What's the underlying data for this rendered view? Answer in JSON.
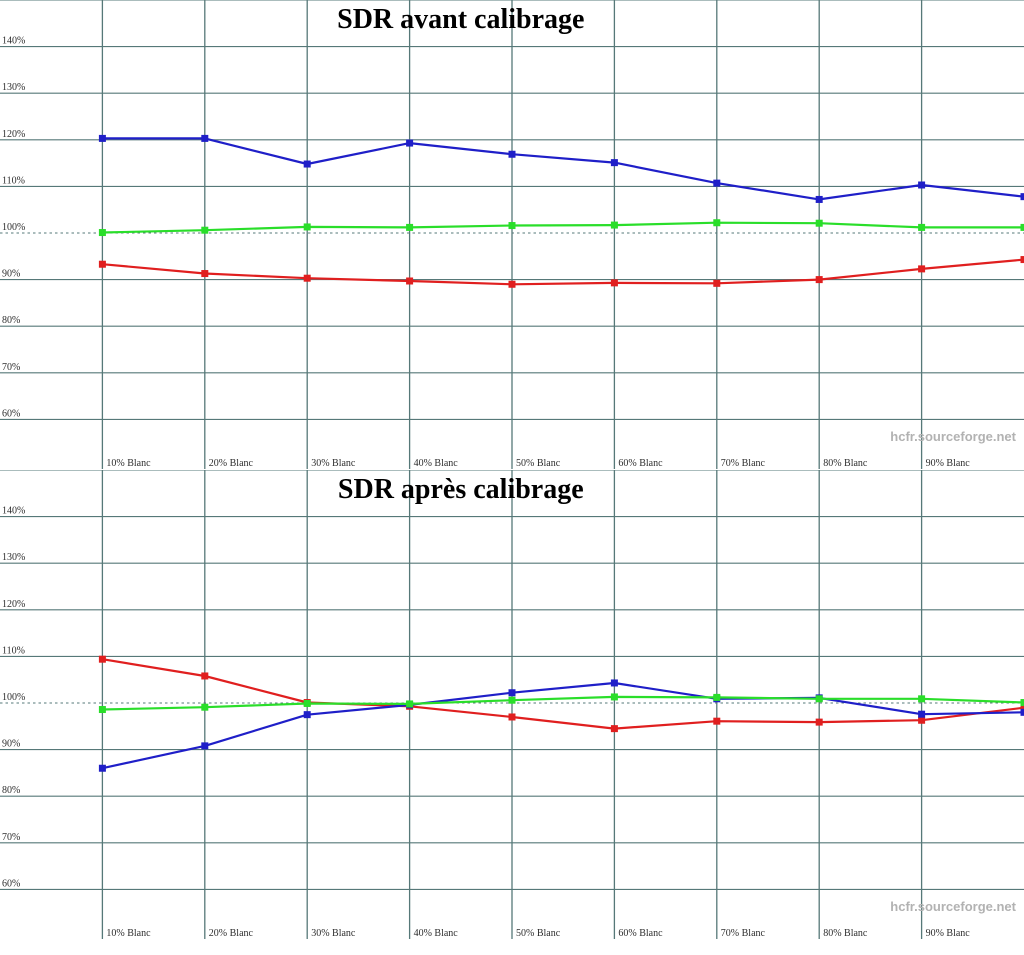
{
  "page": {
    "background": "#ffffff",
    "grid_color": "#567878",
    "tick_label_color": "#2e2e2e",
    "watermark_color": "#b2b2b2"
  },
  "chart_data": [
    {
      "type": "line",
      "title": "SDR avant calibrage",
      "watermark": "hcfr.sourceforge.net",
      "xlabel": "",
      "ylabel": "",
      "xlim": [
        0,
        100
      ],
      "ylim": [
        52,
        150
      ],
      "grid": true,
      "legend": "none",
      "reference_line": 100,
      "x": [
        10,
        20,
        30,
        40,
        50,
        60,
        70,
        80,
        90,
        100
      ],
      "x_tick_labels": [
        "10% Blanc",
        "20% Blanc",
        "30% Blanc",
        "40% Blanc",
        "50% Blanc",
        "60% Blanc",
        "70% Blanc",
        "80% Blanc",
        "90% Blanc"
      ],
      "y_ticks": [
        140,
        130,
        120,
        110,
        100,
        90,
        80,
        70,
        60
      ],
      "y_tick_labels": [
        "140%",
        "130%",
        "120%",
        "110%",
        "100%",
        "90%",
        "80%",
        "70%",
        "60%"
      ],
      "series": [
        {
          "name": "red",
          "color": "#e01f1f",
          "values": [
            93.3,
            91.3,
            90.3,
            89.7,
            89.0,
            89.3,
            89.2,
            90.0,
            92.3,
            94.3
          ]
        },
        {
          "name": "blue",
          "color": "#1f1fc8",
          "values": [
            120.3,
            120.3,
            114.8,
            119.3,
            116.9,
            115.1,
            110.7,
            107.2,
            110.3,
            107.8
          ]
        },
        {
          "name": "green",
          "color": "#2ade2a",
          "values": [
            100.1,
            100.6,
            101.3,
            101.2,
            101.6,
            101.7,
            102.2,
            102.1,
            101.2,
            101.2
          ]
        }
      ]
    },
    {
      "type": "line",
      "title": "SDR après calibrage",
      "watermark": "hcfr.sourceforge.net",
      "xlabel": "",
      "ylabel": "",
      "xlim": [
        0,
        100
      ],
      "ylim": [
        52,
        150
      ],
      "grid": true,
      "legend": "none",
      "reference_line": 100,
      "x": [
        10,
        20,
        30,
        40,
        50,
        60,
        70,
        80,
        90,
        100
      ],
      "x_tick_labels": [
        "10% Blanc",
        "20% Blanc",
        "30% Blanc",
        "40% Blanc",
        "50% Blanc",
        "60% Blanc",
        "70% Blanc",
        "80% Blanc",
        "90% Blanc"
      ],
      "y_ticks": [
        140,
        130,
        120,
        110,
        100,
        90,
        80,
        70,
        60
      ],
      "y_tick_labels": [
        "140%",
        "130%",
        "120%",
        "110%",
        "100%",
        "90%",
        "80%",
        "70%",
        "60%"
      ],
      "series": [
        {
          "name": "red",
          "color": "#e01f1f",
          "values": [
            109.4,
            105.8,
            100.1,
            99.3,
            97.0,
            94.5,
            96.1,
            95.9,
            96.3,
            99.0
          ]
        },
        {
          "name": "blue",
          "color": "#1f1fc8",
          "values": [
            86.0,
            90.8,
            97.5,
            99.6,
            102.2,
            104.3,
            100.9,
            101.1,
            97.6,
            98.0
          ]
        },
        {
          "name": "green",
          "color": "#2ade2a",
          "values": [
            98.6,
            99.1,
            99.9,
            99.8,
            100.6,
            101.3,
            101.2,
            100.9,
            100.9,
            100.1
          ]
        }
      ]
    }
  ]
}
